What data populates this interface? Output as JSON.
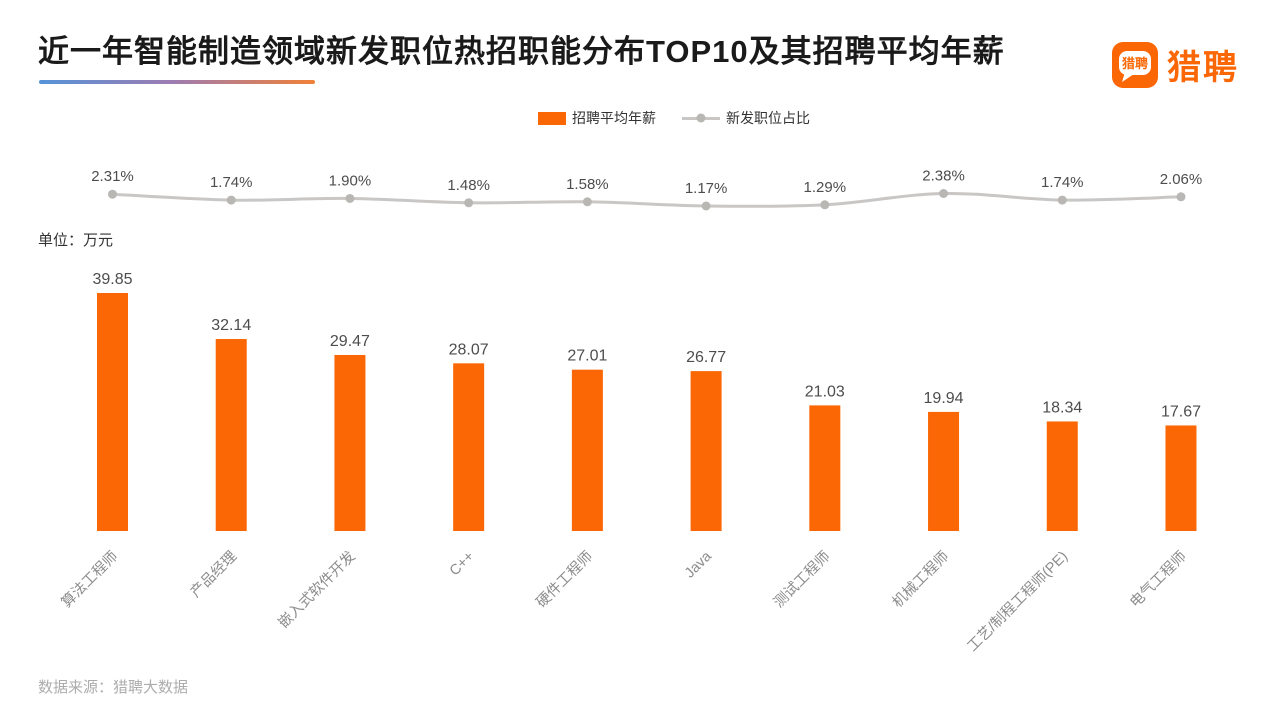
{
  "title": "近一年智能制造领域新发职位热招职能分布TOP10及其招聘平均年薪",
  "logo": {
    "bubble_text": "猎聘",
    "wordmark": "猎聘"
  },
  "legend": {
    "bar_label": "招聘平均年薪",
    "line_label": "新发职位占比"
  },
  "unit_label": "单位：万元",
  "source": "数据来源：猎聘大数据",
  "colors": {
    "bar": "#fb6704",
    "line": "#c9c7c5",
    "dot": "#b9b7b4",
    "value_label": "#4d4d4d",
    "percent_label": "#4d4d4d",
    "category_label": "#8c8c8c"
  },
  "chart_data": {
    "type": "bar",
    "title": "近一年智能制造领域新发职位热招职能分布TOP10及其招聘平均年薪",
    "categories": [
      "算法工程师",
      "产品经理",
      "嵌入式软件开发",
      "C++",
      "硬件工程师",
      "Java",
      "测试工程师",
      "机械工程师",
      "工艺/制程工程师(PE)",
      "电气工程师"
    ],
    "series": [
      {
        "name": "招聘平均年薪",
        "type": "bar",
        "unit": "万元",
        "values": [
          39.85,
          32.14,
          29.47,
          28.07,
          27.01,
          26.77,
          21.03,
          19.94,
          18.34,
          17.67
        ]
      },
      {
        "name": "新发职位占比",
        "type": "line",
        "unit": "%",
        "values": [
          2.31,
          1.74,
          1.9,
          1.48,
          1.58,
          1.17,
          1.29,
          2.38,
          1.74,
          2.06
        ]
      }
    ],
    "ylabel": "单位：万元",
    "ylim": [
      0,
      45
    ],
    "grid": false,
    "legend_position": "top"
  }
}
